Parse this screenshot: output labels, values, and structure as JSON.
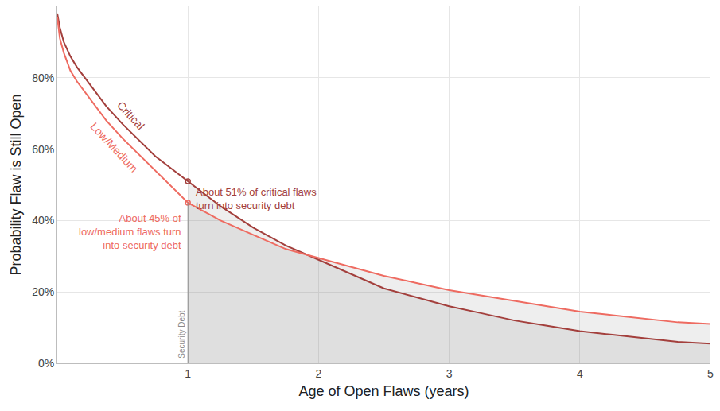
{
  "chart_data": {
    "type": "line",
    "x_label": "Age of Open Flaws (years)",
    "y_label": "Probability Flaw is Still Open",
    "x": [
      0,
      0.02,
      0.05,
      0.1,
      0.15,
      0.25,
      0.375,
      0.5,
      0.625,
      0.75,
      0.875,
      1,
      1.25,
      1.5,
      1.75,
      2,
      2.25,
      2.5,
      2.75,
      3,
      3.25,
      3.5,
      3.75,
      4,
      4.25,
      4.5,
      4.75,
      5
    ],
    "series": [
      {
        "name": "Critical",
        "color": "#a33f3c",
        "values": [
          98,
          94,
          90,
          86,
          83,
          78,
          72,
          67,
          62.5,
          58,
          54.5,
          51,
          44,
          38,
          33,
          29,
          25,
          21,
          18.5,
          16,
          14,
          12,
          10.5,
          9,
          8,
          7,
          6,
          5.5
        ]
      },
      {
        "name": "Low/Medium",
        "color": "#ee6b61",
        "values": [
          97,
          91,
          87,
          82,
          79,
          74,
          68,
          63,
          58.5,
          54,
          49.5,
          45,
          40,
          36,
          32,
          29.5,
          27,
          24.5,
          22.5,
          20.5,
          19,
          17.5,
          16,
          14.5,
          13.5,
          12.5,
          11.5,
          11
        ]
      }
    ],
    "xlim": [
      0,
      5
    ],
    "xticks": [
      1,
      2,
      3,
      4,
      5
    ],
    "ylim": [
      0,
      100
    ],
    "yticks": [
      {
        "value": 0,
        "label": "0%"
      },
      {
        "value": 20,
        "label": "20%"
      },
      {
        "value": 40,
        "label": "40%"
      },
      {
        "value": 60,
        "label": "60%"
      },
      {
        "value": 80,
        "label": "80%"
      }
    ],
    "grid": true,
    "annotations": [
      {
        "lines": [
          "About 51% of critical flaws",
          "turn into security debt"
        ],
        "x": 1,
        "y": 51,
        "color": "#a33f3c"
      },
      {
        "lines": [
          "About 45% of",
          "low/medium flaws turn",
          "into security debt"
        ],
        "x": 1,
        "y": 45,
        "color": "#ee6b61"
      }
    ],
    "security_debt": {
      "label": "Security Debt",
      "x": 1
    }
  }
}
